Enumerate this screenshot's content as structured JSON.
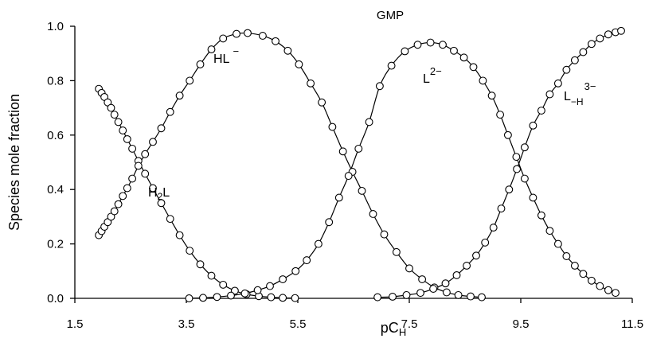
{
  "chart_data": {
    "type": "line",
    "title": "GMP",
    "ylabel": "Species mole fraction",
    "xlabel": {
      "main": "pC",
      "sub": "H"
    },
    "xlim": [
      1.5,
      11.5
    ],
    "ylim": [
      0.0,
      1.0
    ],
    "x_ticks": [
      "1.5",
      "3.5",
      "5.5",
      "7.5",
      "9.5",
      "11.5"
    ],
    "y_ticks": [
      "0.0",
      "0.2",
      "0.4",
      "0.6",
      "0.8",
      "1.0"
    ],
    "grid": false,
    "legend": "none",
    "series": [
      {
        "name": "H2L",
        "points": [
          [
            1.93,
            0.77
          ],
          [
            1.98,
            0.755
          ],
          [
            2.03,
            0.74
          ],
          [
            2.09,
            0.72
          ],
          [
            2.15,
            0.7
          ],
          [
            2.21,
            0.675
          ],
          [
            2.28,
            0.648
          ],
          [
            2.36,
            0.617
          ],
          [
            2.44,
            0.585
          ],
          [
            2.53,
            0.55
          ],
          [
            2.64,
            0.505
          ],
          [
            2.76,
            0.458
          ],
          [
            2.9,
            0.405
          ],
          [
            3.05,
            0.35
          ],
          [
            3.21,
            0.292
          ],
          [
            3.38,
            0.232
          ],
          [
            3.56,
            0.175
          ],
          [
            3.75,
            0.125
          ],
          [
            3.95,
            0.083
          ],
          [
            4.16,
            0.05
          ],
          [
            4.37,
            0.028
          ],
          [
            4.58,
            0.015
          ],
          [
            4.8,
            0.008
          ],
          [
            5.02,
            0.004
          ],
          [
            5.23,
            0.002
          ],
          [
            5.45,
            0.001
          ]
        ]
      },
      {
        "name": "HL-",
        "points": [
          [
            1.93,
            0.232
          ],
          [
            1.98,
            0.247
          ],
          [
            2.03,
            0.263
          ],
          [
            2.09,
            0.28
          ],
          [
            2.15,
            0.3
          ],
          [
            2.21,
            0.32
          ],
          [
            2.28,
            0.346
          ],
          [
            2.36,
            0.376
          ],
          [
            2.44,
            0.405
          ],
          [
            2.53,
            0.44
          ],
          [
            2.64,
            0.487
          ],
          [
            2.76,
            0.53
          ],
          [
            2.9,
            0.575
          ],
          [
            3.05,
            0.625
          ],
          [
            3.21,
            0.685
          ],
          [
            3.38,
            0.745
          ],
          [
            3.56,
            0.8
          ],
          [
            3.75,
            0.86
          ],
          [
            3.95,
            0.915
          ],
          [
            4.16,
            0.955
          ],
          [
            4.4,
            0.972
          ],
          [
            4.6,
            0.975
          ],
          [
            4.87,
            0.965
          ],
          [
            5.1,
            0.945
          ],
          [
            5.32,
            0.91
          ],
          [
            5.52,
            0.86
          ],
          [
            5.73,
            0.79
          ],
          [
            5.93,
            0.72
          ],
          [
            6.12,
            0.63
          ],
          [
            6.31,
            0.54
          ],
          [
            6.48,
            0.465
          ],
          [
            6.65,
            0.395
          ],
          [
            6.85,
            0.31
          ],
          [
            7.05,
            0.235
          ],
          [
            7.27,
            0.17
          ],
          [
            7.5,
            0.11
          ],
          [
            7.73,
            0.07
          ],
          [
            7.95,
            0.04
          ],
          [
            8.17,
            0.022
          ],
          [
            8.38,
            0.012
          ],
          [
            8.6,
            0.007
          ],
          [
            8.8,
            0.004
          ]
        ]
      },
      {
        "name": "L2-",
        "points": [
          [
            3.55,
            0.0
          ],
          [
            3.8,
            0.002
          ],
          [
            4.05,
            0.005
          ],
          [
            4.3,
            0.01
          ],
          [
            4.55,
            0.018
          ],
          [
            4.78,
            0.03
          ],
          [
            5.0,
            0.045
          ],
          [
            5.23,
            0.07
          ],
          [
            5.46,
            0.1
          ],
          [
            5.66,
            0.14
          ],
          [
            5.87,
            0.2
          ],
          [
            6.06,
            0.28
          ],
          [
            6.24,
            0.37
          ],
          [
            6.41,
            0.45
          ],
          [
            6.59,
            0.55
          ],
          [
            6.78,
            0.648
          ],
          [
            6.97,
            0.78
          ],
          [
            7.18,
            0.855
          ],
          [
            7.42,
            0.908
          ],
          [
            7.65,
            0.932
          ],
          [
            7.88,
            0.94
          ],
          [
            8.1,
            0.932
          ],
          [
            8.3,
            0.91
          ],
          [
            8.48,
            0.885
          ],
          [
            8.65,
            0.85
          ],
          [
            8.82,
            0.8
          ],
          [
            8.98,
            0.745
          ],
          [
            9.13,
            0.675
          ],
          [
            9.27,
            0.6
          ],
          [
            9.42,
            0.52
          ],
          [
            9.57,
            0.44
          ],
          [
            9.72,
            0.37
          ],
          [
            9.87,
            0.305
          ],
          [
            10.02,
            0.248
          ],
          [
            10.17,
            0.2
          ],
          [
            10.32,
            0.155
          ],
          [
            10.47,
            0.12
          ],
          [
            10.62,
            0.09
          ],
          [
            10.77,
            0.065
          ],
          [
            10.92,
            0.045
          ],
          [
            11.07,
            0.03
          ],
          [
            11.2,
            0.02
          ]
        ]
      },
      {
        "name": "L-H3-",
        "points": [
          [
            6.93,
            0.004
          ],
          [
            7.2,
            0.006
          ],
          [
            7.45,
            0.012
          ],
          [
            7.7,
            0.02
          ],
          [
            7.93,
            0.035
          ],
          [
            8.15,
            0.055
          ],
          [
            8.35,
            0.085
          ],
          [
            8.53,
            0.12
          ],
          [
            8.7,
            0.157
          ],
          [
            8.86,
            0.205
          ],
          [
            9.01,
            0.26
          ],
          [
            9.15,
            0.33
          ],
          [
            9.29,
            0.4
          ],
          [
            9.43,
            0.475
          ],
          [
            9.57,
            0.555
          ],
          [
            9.72,
            0.635
          ],
          [
            9.87,
            0.69
          ],
          [
            10.02,
            0.75
          ],
          [
            10.17,
            0.79
          ],
          [
            10.32,
            0.84
          ],
          [
            10.47,
            0.875
          ],
          [
            10.62,
            0.905
          ],
          [
            10.77,
            0.935
          ],
          [
            10.92,
            0.955
          ],
          [
            11.07,
            0.97
          ],
          [
            11.2,
            0.978
          ],
          [
            11.3,
            0.983
          ]
        ]
      }
    ],
    "annotations": {
      "h2l": {
        "base": "H",
        "sub": "2",
        "tail": "L"
      },
      "hl": {
        "base": "HL",
        "sup": "−"
      },
      "l2": {
        "base": "L",
        "sup": "2−"
      },
      "lh3": {
        "base": "L",
        "sub": "−H",
        "sup": "3−"
      }
    }
  }
}
